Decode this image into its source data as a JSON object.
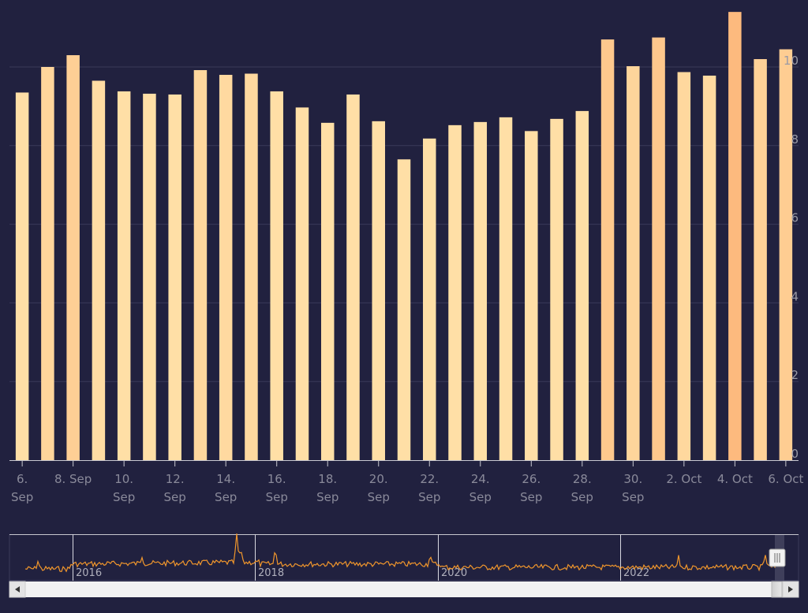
{
  "chart_data": {
    "type": "bar",
    "categories": [
      "6. Sep",
      "7. Sep",
      "8. Sep",
      "9. Sep",
      "10. Sep",
      "11. Sep",
      "12. Sep",
      "13. Sep",
      "14. Sep",
      "15. Sep",
      "16. Sep",
      "17. Sep",
      "18. Sep",
      "19. Sep",
      "20. Sep",
      "21. Sep",
      "22. Sep",
      "23. Sep",
      "24. Sep",
      "25. Sep",
      "26. Sep",
      "27. Sep",
      "28. Sep",
      "29. Sep",
      "30. Sep",
      "1. Oct",
      "2. Oct",
      "3. Oct",
      "4. Oct",
      "5. Oct",
      "6. Oct"
    ],
    "values": [
      9.35,
      10.0,
      10.3,
      9.65,
      9.38,
      9.32,
      9.3,
      9.92,
      9.8,
      9.83,
      9.38,
      8.97,
      8.58,
      9.3,
      8.62,
      7.65,
      8.18,
      8.52,
      8.6,
      8.72,
      8.37,
      8.68,
      8.88,
      10.7,
      10.02,
      10.75,
      9.87,
      9.78,
      11.4,
      10.2,
      10.45
    ],
    "xtick_labels": [
      {
        "index": 0,
        "lines": [
          "6.",
          "Sep"
        ]
      },
      {
        "index": 2,
        "lines": [
          "8. Sep"
        ]
      },
      {
        "index": 4,
        "lines": [
          "10.",
          "Sep"
        ]
      },
      {
        "index": 6,
        "lines": [
          "12.",
          "Sep"
        ]
      },
      {
        "index": 8,
        "lines": [
          "14.",
          "Sep"
        ]
      },
      {
        "index": 10,
        "lines": [
          "16.",
          "Sep"
        ]
      },
      {
        "index": 12,
        "lines": [
          "18.",
          "Sep"
        ]
      },
      {
        "index": 14,
        "lines": [
          "20.",
          "Sep"
        ]
      },
      {
        "index": 16,
        "lines": [
          "22.",
          "Sep"
        ]
      },
      {
        "index": 18,
        "lines": [
          "24.",
          "Sep"
        ]
      },
      {
        "index": 20,
        "lines": [
          "26.",
          "Sep"
        ]
      },
      {
        "index": 22,
        "lines": [
          "28.",
          "Sep"
        ]
      },
      {
        "index": 24,
        "lines": [
          "30.",
          "Sep"
        ]
      },
      {
        "index": 26,
        "lines": [
          "2. Oct"
        ]
      },
      {
        "index": 28,
        "lines": [
          "4. Oct"
        ]
      },
      {
        "index": 30,
        "lines": [
          "6. Oct"
        ]
      }
    ],
    "yticks": [
      0,
      2,
      4,
      6,
      8,
      10
    ],
    "ylim": [
      0,
      11.4
    ],
    "grid": true,
    "title": "",
    "xlabel": "",
    "ylabel": "",
    "colors": {
      "background": "#21213f",
      "bar_low": "#ffdfa6",
      "bar_high": "#fdba7e",
      "grid": "#3a3a5a",
      "axis": "#c8c8d0",
      "navigator_line": "#f0962c"
    },
    "navigator": {
      "year_labels": [
        "2016",
        "2018",
        "2020",
        "2022"
      ],
      "series_description": "daily history 2015–2023",
      "selection": "last month"
    }
  }
}
